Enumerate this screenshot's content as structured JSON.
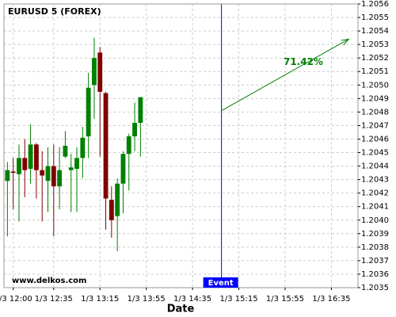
{
  "chart_data": {
    "type": "candlestick",
    "title": "EURUSD 5 (FOREX)",
    "x_label": "Date",
    "x": [
      "1/3 11:55",
      "1/3 12:00",
      "1/3 12:05",
      "1/3 12:10",
      "1/3 12:15",
      "1/3 12:20",
      "1/3 12:25",
      "1/3 12:30",
      "1/3 12:35",
      "1/3 12:40",
      "1/3 12:45",
      "1/3 12:50",
      "1/3 12:55",
      "1/3 13:00",
      "1/3 13:05",
      "1/3 13:10",
      "1/3 13:15",
      "1/3 13:20",
      "1/3 13:25",
      "1/3 13:30",
      "1/3 13:35",
      "1/3 13:40",
      "1/3 13:45",
      "1/3 13:50"
    ],
    "open": [
      1.20429,
      1.20436,
      1.20434,
      1.20446,
      1.20438,
      1.20456,
      1.20437,
      1.20429,
      1.2044,
      1.20425,
      1.20447,
      1.20437,
      1.20438,
      1.20446,
      1.20462,
      1.205,
      1.20524,
      1.20494,
      1.20415,
      1.20403,
      1.20427,
      1.20449,
      1.20462,
      1.20472
    ],
    "high": [
      1.20443,
      1.20446,
      1.20456,
      1.2046,
      1.20471,
      1.20457,
      1.20451,
      1.20454,
      1.20456,
      1.20454,
      1.20466,
      1.20449,
      1.20454,
      1.20469,
      1.20509,
      1.20535,
      1.20528,
      1.20495,
      1.20425,
      1.20431,
      1.20451,
      1.20464,
      1.20487,
      1.20491
    ],
    "low": [
      1.20388,
      1.20408,
      1.20399,
      1.20417,
      1.20427,
      1.20416,
      1.20399,
      1.20406,
      1.20388,
      1.20408,
      1.20446,
      1.20406,
      1.20406,
      1.20431,
      1.20446,
      1.20475,
      1.20447,
      1.20393,
      1.20387,
      1.20377,
      1.20405,
      1.20422,
      1.20451,
      1.20447
    ],
    "close": [
      1.20437,
      1.20435,
      1.20446,
      1.20437,
      1.20456,
      1.20437,
      1.20433,
      1.2044,
      1.20425,
      1.20437,
      1.20455,
      1.20439,
      1.20446,
      1.20461,
      1.20498,
      1.2052,
      1.20495,
      1.20416,
      1.204,
      1.20427,
      1.20449,
      1.20462,
      1.20472,
      1.20491
    ],
    "up_color": "#008000",
    "down_color": "#800000",
    "xlim": [
      "1/3 11:52",
      "1/3 16:58"
    ],
    "xticks": [
      "1/3 12:00",
      "1/3 12:35",
      "1/3 13:15",
      "1/3 13:55",
      "1/3 14:35",
      "1/3 15:15",
      "1/3 15:55",
      "1/3 16:35"
    ],
    "ylim": [
      1.2035,
      1.2056
    ],
    "yticks": [
      1.2035,
      1.2036,
      1.2037,
      1.2038,
      1.2039,
      {
        "value": 1.204,
        "label": "1.2040"
      },
      1.2041,
      1.2042,
      1.2043,
      1.2044,
      1.2045,
      1.2046,
      1.2047,
      1.2048,
      1.2049,
      {
        "value": 1.205,
        "label": "1.2050"
      },
      1.2051,
      1.2052,
      1.2053,
      1.2054,
      1.2055,
      1.2056
    ],
    "grid": true,
    "annotations": {
      "event": {
        "x": "1/3 15:00",
        "label": "Event",
        "color": "#0000ff"
      },
      "arrow": {
        "x": [
          "1/3 15:00",
          "1/3 16:50"
        ],
        "y": [
          1.20481,
          1.20534
        ],
        "label": "71.42%",
        "color": "#008000"
      },
      "watermark": "www.delkos.com"
    }
  }
}
